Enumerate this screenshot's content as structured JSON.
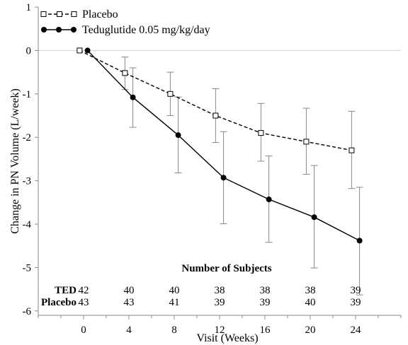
{
  "chart_data": {
    "type": "line",
    "ylabel": "Change in PN Volume (L/week)",
    "xlabel": "Visit (Weeks)",
    "x": [
      0,
      4,
      8,
      12,
      16,
      20,
      24
    ],
    "xticks": [
      "0",
      "4",
      "8",
      "12",
      "16",
      "20",
      "24"
    ],
    "yticks": [
      "1",
      "0",
      "-1",
      "-2",
      "-3",
      "-4",
      "-5",
      "-6"
    ],
    "xlim": [
      -4,
      28
    ],
    "ylim": [
      -6.1,
      1.0
    ],
    "grid": false,
    "reference_line_y": 0,
    "legend_position": "top-left",
    "series": [
      {
        "name": "Placebo",
        "key": "placebo",
        "style": "dashed",
        "marker": "open-square",
        "x_offset": -0.35,
        "values": [
          0,
          -0.52,
          -1.0,
          -1.5,
          -1.9,
          -2.1,
          -2.3
        ],
        "err_upper": [
          0,
          -0.15,
          -0.5,
          -0.88,
          -1.22,
          -1.33,
          -1.4
        ],
        "err_lower": [
          0,
          -0.9,
          -1.5,
          -2.12,
          -2.55,
          -2.85,
          -3.18
        ]
      },
      {
        "name": "Teduglutide 0.05 mg/kg/day",
        "key": "teduglutide",
        "style": "solid",
        "marker": "filled-circle",
        "x_offset": 0.35,
        "values": [
          0,
          -1.08,
          -1.95,
          -2.93,
          -3.43,
          -3.84,
          -4.38
        ],
        "err_upper": [
          0,
          -0.4,
          -1.07,
          -1.87,
          -2.43,
          -2.65,
          -3.15
        ],
        "err_lower": [
          0,
          -1.77,
          -2.82,
          -3.99,
          -4.42,
          -5.01,
          -5.63
        ]
      }
    ],
    "subjects": {
      "heading": "Number of Subjects",
      "rows": [
        {
          "label": "TED",
          "values": [
            "42",
            "40",
            "40",
            "38",
            "38",
            "38",
            "39"
          ]
        },
        {
          "label": "Placebo",
          "values": [
            "43",
            "43",
            "41",
            "39",
            "39",
            "40",
            "39"
          ]
        }
      ]
    },
    "colors": {
      "line": "#000000",
      "errorbar": "#888888",
      "axis": "#888888",
      "reference": "#d0d0d0"
    }
  }
}
